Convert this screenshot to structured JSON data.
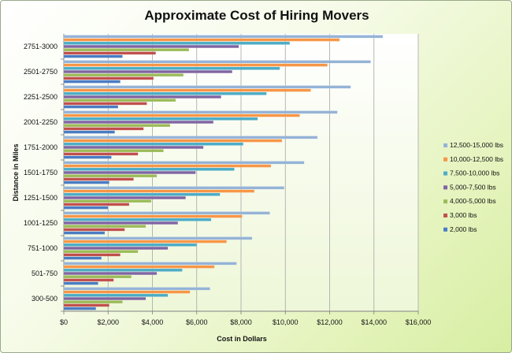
{
  "chart_data": {
    "type": "bar",
    "orientation": "horizontal",
    "title": "Approximate Cost of Hiring Movers",
    "xlabel": "Cost in Dollars",
    "ylabel": "Distance in Miles",
    "xlim": [
      0,
      16000
    ],
    "x_ticks": [
      "$0",
      "$2,000",
      "$4,000",
      "$6,000",
      "$8,000",
      "$10,000",
      "$12,000",
      "$14,000",
      "$16,000"
    ],
    "categories": [
      "300-500",
      "501-750",
      "751-1000",
      "1001-1250",
      "1251-1500",
      "1501-1750",
      "1751-2000",
      "2001-2250",
      "2251-2500",
      "2501-2750",
      "2751-3000"
    ],
    "series": [
      {
        "name": "2,000 lbs",
        "color": "#4a7cc4",
        "values": [
          1450,
          1550,
          1700,
          1850,
          2000,
          2050,
          2150,
          2300,
          2450,
          2550,
          2650
        ]
      },
      {
        "name": "3,000 lbs",
        "color": "#c0504d",
        "values": [
          2050,
          2250,
          2550,
          2750,
          2950,
          3150,
          3350,
          3600,
          3750,
          4050,
          4150
        ]
      },
      {
        "name": "4,000-5,000 lbs",
        "color": "#9bbb59",
        "values": [
          2650,
          3050,
          3350,
          3700,
          3950,
          4200,
          4500,
          4800,
          5050,
          5400,
          5650
        ]
      },
      {
        "name": "5,000-7,500 lbs",
        "color": "#8064a2",
        "values": [
          3700,
          4200,
          4700,
          5150,
          5500,
          5950,
          6300,
          6750,
          7100,
          7600,
          7900
        ]
      },
      {
        "name": "7,500-10,000 lbs",
        "color": "#4bacc6",
        "values": [
          4700,
          5350,
          6000,
          6650,
          7050,
          7700,
          8100,
          8750,
          9150,
          9750,
          10200
        ]
      },
      {
        "name": "10,000-12,500 lbs",
        "color": "#f79646",
        "values": [
          5700,
          6800,
          7350,
          8050,
          8600,
          9350,
          9850,
          10650,
          11150,
          11900,
          12450
        ]
      },
      {
        "name": "12,500-15,000 lbs",
        "color": "#95b3d7",
        "values": [
          6600,
          7800,
          8500,
          9300,
          9950,
          10850,
          11450,
          12350,
          12950,
          13850,
          14400
        ]
      }
    ],
    "grid": true,
    "legend_position": "right"
  }
}
